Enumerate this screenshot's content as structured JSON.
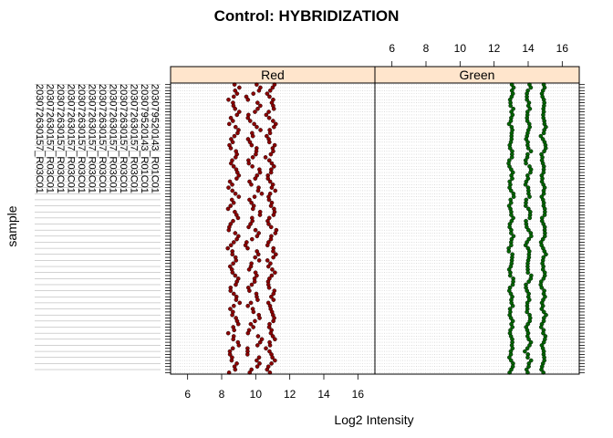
{
  "chart_data": {
    "type": "scatter",
    "title": "Control: HYBRIDIZATION",
    "xlabel": "Log2 Intensity",
    "ylabel": "sample",
    "xlim": [
      5,
      17
    ],
    "xticks": [
      6,
      8,
      10,
      12,
      14,
      16
    ],
    "grid": true,
    "panels": [
      {
        "name": "Red",
        "color": "#8b0000",
        "strip_color": "#ffe5cc",
        "probe_centers": [
          8.7,
          9.9,
          10.9
        ],
        "probe_spread": [
          0.35,
          0.5,
          0.3
        ]
      },
      {
        "name": "Green",
        "color": "#006400",
        "strip_color": "#ffe5cc",
        "probe_centers": [
          13.0,
          14.0,
          14.9
        ],
        "probe_spread": [
          0.15,
          0.18,
          0.15
        ]
      }
    ],
    "sample_labels": [
      "203072630157_R03C01",
      "203072630157_R03C01",
      "203072630157_R03C01",
      "203072630157_R03C01",
      "203072630157_R03C01",
      "203072630157_R03C01",
      "203072630157_R03C01",
      "203072630157_R03C01",
      "203072630157_R03C01",
      "203072630157_R03C01",
      "203079520143_R01C01",
      "203079520143_R01C01",
      "203079520143_R01C01",
      "203079520143_R01C01",
      "203079520143_R01C01",
      "203079520143_R01C01",
      "203079520143_R01C01",
      "203079520143_R01C01",
      "203079520143_R01C01",
      "203079520143_R01C01"
    ]
  }
}
